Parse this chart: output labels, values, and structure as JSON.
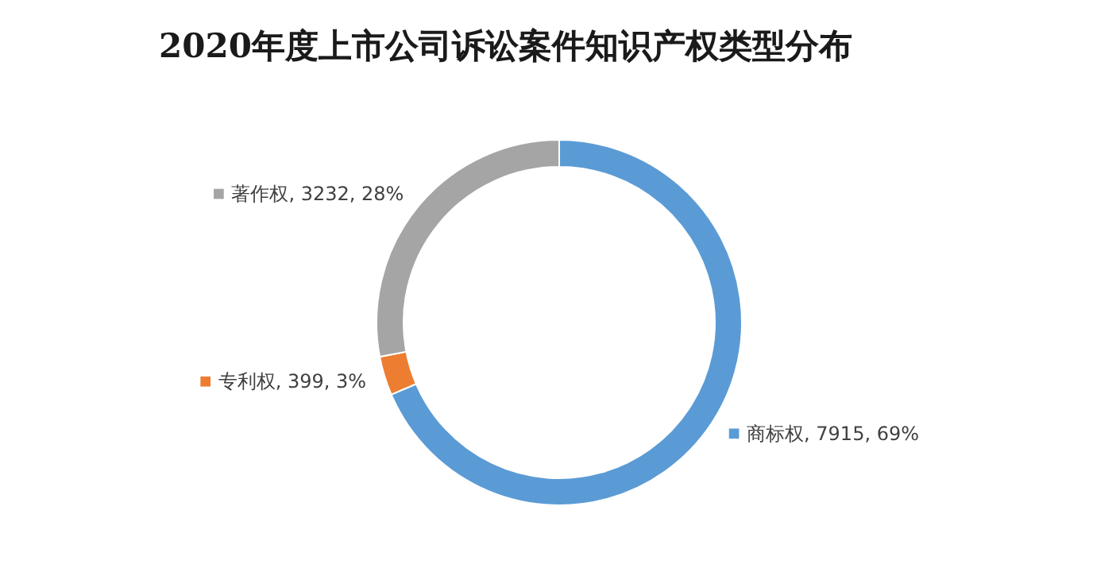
{
  "chart_data": {
    "type": "donut",
    "title": "2020年度上市公司诉讼案件知识产权类型分布",
    "categories": [
      "商标权",
      "专利权",
      "著作权"
    ],
    "values": [
      7915,
      399,
      3232
    ],
    "value_labels": [
      "7915, 69%",
      "399, 3%",
      "3232, 28%"
    ],
    "colors": [
      "#5b9bd5",
      "#ed7d31",
      "#a5a5a5"
    ],
    "legend": "left"
  }
}
